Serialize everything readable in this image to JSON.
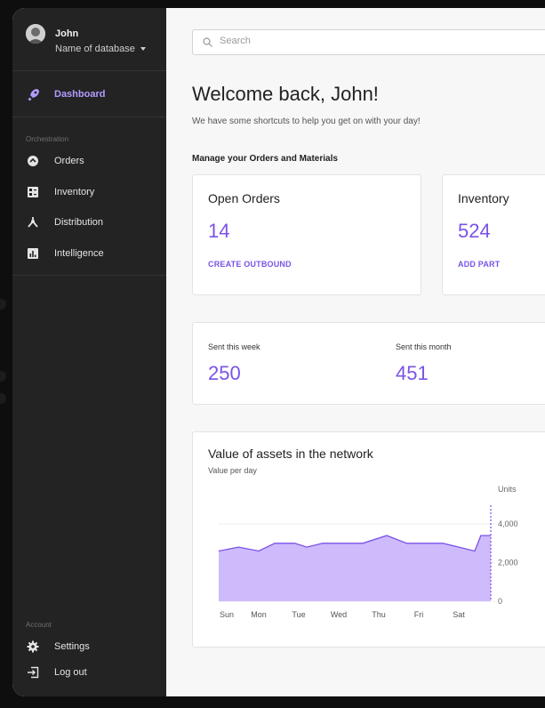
{
  "sidebar": {
    "user_name": "John",
    "database_name": "Name of database",
    "active_item": "Dashboard",
    "orchestration_label": "Orchestration",
    "orchestration_items": [
      "Orders",
      "Inventory",
      "Distribution",
      "Intelligence"
    ],
    "account_label": "Account",
    "account_items": [
      "Settings",
      "Log out"
    ]
  },
  "search": {
    "placeholder": "Search"
  },
  "header": {
    "welcome": "Welcome back, John!",
    "subtitle": "We have some shortcuts to help you get on with your day!"
  },
  "manage": {
    "heading": "Manage your Orders and Materials",
    "cards": [
      {
        "title": "Open Orders",
        "value": "14",
        "action": "CREATE OUTBOUND"
      },
      {
        "title": "Inventory",
        "value": "524",
        "action": "ADD PART"
      }
    ]
  },
  "stats": [
    {
      "label": "Sent this week",
      "value": "250"
    },
    {
      "label": "Sent this month",
      "value": "451"
    }
  ],
  "chart": {
    "title": "Value of assets in the network",
    "subtitle": "Value per day",
    "units_label": "Units"
  },
  "colors": {
    "accent": "#7b52e8",
    "accent_light": "#b39bff",
    "sidebar_bg": "#232323",
    "area_fill": "#cbb7fb"
  },
  "chart_data": {
    "type": "area",
    "categories": [
      "Sun",
      "Mon",
      "Tue",
      "Wed",
      "Thu",
      "Fri",
      "Sat"
    ],
    "y_ticks": [
      0,
      2000,
      4000
    ],
    "ylim": [
      0,
      4600
    ],
    "x_range": [
      0,
      6.8
    ],
    "points": [
      [
        0,
        2600
      ],
      [
        0.5,
        2800
      ],
      [
        1,
        2600
      ],
      [
        1.4,
        3000
      ],
      [
        1.9,
        3000
      ],
      [
        2.2,
        2800
      ],
      [
        2.6,
        3000
      ],
      [
        3,
        3000
      ],
      [
        3.6,
        3000
      ],
      [
        4.2,
        3400
      ],
      [
        4.7,
        3000
      ],
      [
        5.2,
        3000
      ],
      [
        5.6,
        3000
      ],
      [
        6,
        2800
      ],
      [
        6.4,
        2600
      ],
      [
        6.55,
        3400
      ],
      [
        6.8,
        3400
      ]
    ]
  }
}
